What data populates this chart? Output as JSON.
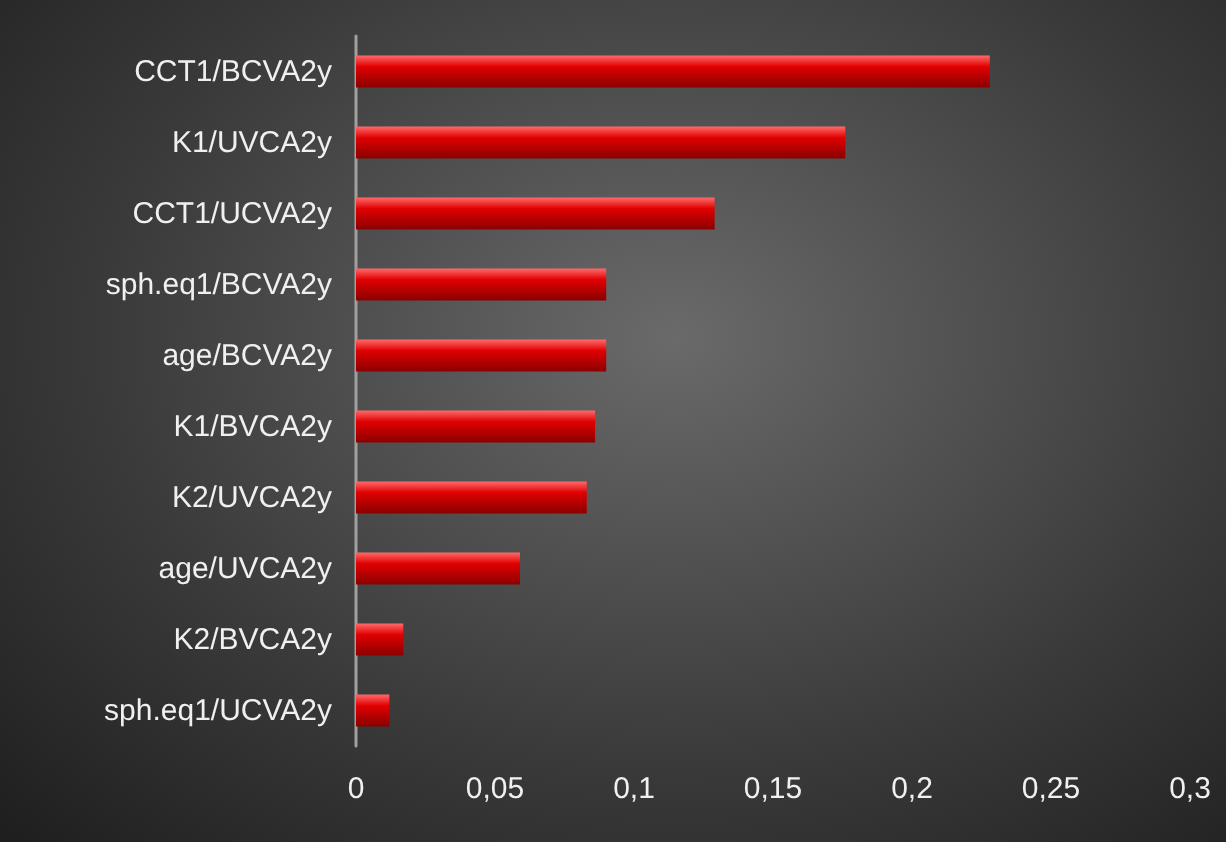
{
  "chart_data": {
    "type": "bar",
    "orientation": "horizontal",
    "categories": [
      "CCT1/BCVA2y",
      "K1/UVCA2y",
      "CCT1/UCVA2y",
      "sph.eq1/BCVA2y",
      "age/BCVA2y",
      "K1/BVCA2y",
      "K2/UVCA2y",
      "age/UVCA2y",
      "K2/BVCA2y",
      "sph.eq1/UCVA2y"
    ],
    "values": [
      0.228,
      0.176,
      0.129,
      0.09,
      0.09,
      0.086,
      0.083,
      0.059,
      0.017,
      0.012
    ],
    "color": "#e00000",
    "xlim": [
      0,
      0.3
    ],
    "xticks": [
      0,
      {
        "value": 0.05,
        "label": "0,05"
      },
      {
        "value": 0.1,
        "label": "0,1"
      },
      {
        "value": 0.15,
        "label": "0,15"
      },
      {
        "value": 0.2,
        "label": "0,2"
      },
      {
        "value": 0.25,
        "label": "0,25"
      },
      {
        "value": 0.3,
        "label": "0,3"
      }
    ],
    "grid": false
  }
}
